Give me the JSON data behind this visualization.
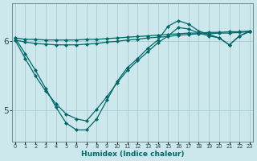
{
  "xlabel": "Humidex (Indice chaleur)",
  "bg_color": "#cce8ec",
  "grid_color": "#aaccd4",
  "line_color": "#006868",
  "x_ticks": [
    0,
    1,
    2,
    3,
    4,
    5,
    6,
    7,
    8,
    9,
    10,
    11,
    12,
    13,
    14,
    15,
    16,
    17,
    18,
    19,
    20,
    21,
    22,
    23
  ],
  "y_ticks": [
    5,
    6
  ],
  "ylim": [
    4.55,
    6.55
  ],
  "xlim": [
    -0.3,
    23.3
  ],
  "lines": [
    {
      "x": [
        0,
        1,
        2,
        3,
        4,
        5,
        6,
        7,
        8,
        9,
        10,
        11,
        12,
        13,
        14,
        15,
        16,
        17,
        18,
        19,
        20,
        21,
        22,
        23
      ],
      "y": [
        6.05,
        6.03,
        6.03,
        6.02,
        6.02,
        6.02,
        6.02,
        6.03,
        6.03,
        6.04,
        6.05,
        6.06,
        6.07,
        6.08,
        6.09,
        6.1,
        6.11,
        6.12,
        6.12,
        6.13,
        6.13,
        6.14,
        6.14,
        6.15
      ]
    },
    {
      "x": [
        0,
        1,
        2,
        3,
        4,
        5,
        6,
        7,
        8,
        9,
        10,
        11,
        12,
        13,
        14,
        15,
        16,
        17,
        18,
        19,
        20,
        21,
        22,
        23
      ],
      "y": [
        6.02,
        5.99,
        5.97,
        5.96,
        5.95,
        5.95,
        5.95,
        5.96,
        5.97,
        5.99,
        6.0,
        6.02,
        6.03,
        6.05,
        6.06,
        6.07,
        6.09,
        6.1,
        6.11,
        6.11,
        6.12,
        6.12,
        6.13,
        6.14
      ]
    },
    {
      "x": [
        0,
        1,
        2,
        3,
        4,
        5,
        6,
        7,
        8,
        9,
        10,
        11,
        12,
        13,
        14,
        15,
        16,
        17,
        18,
        19,
        20,
        21,
        22,
        23
      ],
      "y": [
        6.05,
        5.82,
        5.58,
        5.32,
        5.05,
        4.82,
        4.72,
        4.72,
        4.88,
        5.15,
        5.42,
        5.62,
        5.75,
        5.9,
        6.02,
        6.22,
        6.3,
        6.25,
        6.15,
        6.1,
        6.05,
        5.95,
        6.08,
        6.15
      ]
    },
    {
      "x": [
        0,
        1,
        2,
        3,
        4,
        5,
        6,
        7,
        8,
        9,
        10,
        11,
        12,
        13,
        14,
        15,
        16,
        17,
        18,
        19,
        20,
        21,
        22,
        23
      ],
      "y": [
        6.02,
        5.75,
        5.5,
        5.28,
        5.1,
        4.95,
        4.88,
        4.85,
        5.02,
        5.2,
        5.4,
        5.58,
        5.72,
        5.85,
        5.98,
        6.08,
        6.2,
        6.18,
        6.12,
        6.08,
        6.05,
        5.95,
        6.08,
        6.14
      ]
    }
  ]
}
